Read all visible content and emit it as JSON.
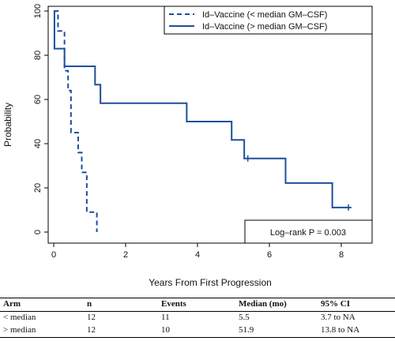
{
  "chart_data": {
    "type": "line",
    "xlabel": "Years From First Progression",
    "ylabel": "Probability",
    "xlim": [
      0,
      8.6
    ],
    "ylim": [
      0,
      100
    ],
    "x_ticks": [
      "0",
      "2",
      "4",
      "6",
      "8"
    ],
    "y_ticks": [
      "0",
      "20",
      "40",
      "60",
      "80",
      "100"
    ],
    "legend_position": "top-right",
    "series": [
      {
        "name": "Id–Vaccine (< median GM–CSF)",
        "line_style": "dashed",
        "color": "#1f4e9c",
        "steps": [
          [
            0,
            100
          ],
          [
            0.12,
            91
          ],
          [
            0.3,
            73
          ],
          [
            0.4,
            64
          ],
          [
            0.48,
            45
          ],
          [
            0.68,
            36
          ],
          [
            0.78,
            27
          ],
          [
            0.92,
            9
          ],
          [
            1.2,
            0
          ]
        ],
        "censored": []
      },
      {
        "name": "Id–Vaccine (> median GM–CSF)",
        "line_style": "solid",
        "color": "#1f4e9c",
        "steps": [
          [
            0,
            100
          ],
          [
            0.02,
            83
          ],
          [
            0.3,
            75
          ],
          [
            1.15,
            66.7
          ],
          [
            1.3,
            58.3
          ],
          [
            3.7,
            50
          ],
          [
            4.95,
            41.7
          ],
          [
            5.3,
            33.3
          ],
          [
            6.45,
            22.2
          ],
          [
            7.75,
            11.1
          ],
          [
            8.25,
            11.1
          ]
        ],
        "censored": [
          [
            5.4,
            33.3
          ],
          [
            8.2,
            11.1
          ]
        ]
      }
    ],
    "annotation": "Log–rank P = 0.003"
  },
  "table": {
    "headers": [
      "Arm",
      "n",
      "Events",
      "Median (mo)",
      "95% CI"
    ],
    "rows": [
      [
        "< median",
        "12",
        "11",
        "5.5",
        "3.7 to NA"
      ],
      [
        "> median",
        "12",
        "10",
        "51.9",
        "13.8 to NA"
      ]
    ]
  }
}
